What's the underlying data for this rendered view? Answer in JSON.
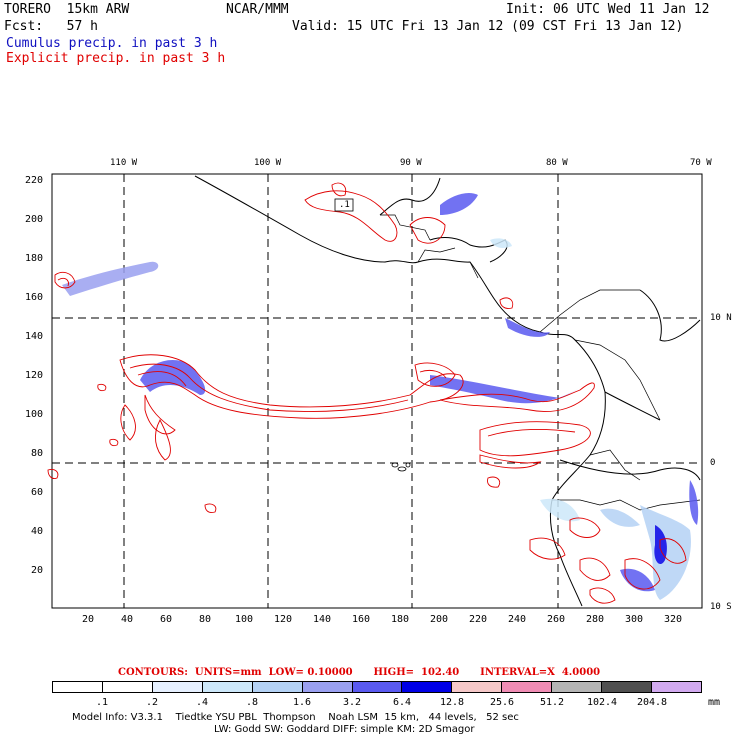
{
  "header": {
    "model": "TORERO  15km ARW",
    "org": "NCAR/MMM",
    "init": "Init: 06 UTC Wed 11 Jan 12",
    "fcst": "Fcst:   57 h",
    "valid": "Valid: 15 UTC Fri 13 Jan 12 (09 CST Fri 13 Jan 12)",
    "cumulus": "Cumulus precip. in past 3 h",
    "explicit": "Explicit precip. in past 3 h"
  },
  "axes": {
    "top_labels": [
      "110 W",
      "100 W",
      "90 W",
      "80 W",
      "70 W"
    ],
    "right_labels": [
      "10 N",
      "0",
      "10 S"
    ],
    "left_ticks": [
      "220",
      "200",
      "180",
      "160",
      "140",
      "120",
      "100",
      "80",
      "60",
      "40",
      "20"
    ],
    "bottom_ticks": [
      "20",
      "40",
      "60",
      "80",
      "100",
      "120",
      "140",
      "160",
      "180",
      "200",
      "220",
      "240",
      "260",
      "280",
      "300",
      "320"
    ]
  },
  "map_marks": {
    "box_label": ".1"
  },
  "footer": {
    "contours": "CONTOURS:  UNITS=mm  LOW= 0.10000      HIGH=  102.40      INTERVAL=X  4.0000",
    "colorbar_labels": [
      ".1",
      ".2",
      ".4",
      ".8",
      "1.6",
      "3.2",
      "6.4",
      "12.8",
      "25.6",
      "51.2",
      "102.4",
      "204.8"
    ],
    "colorbar_unit": "mm",
    "colorbar_colors": [
      "#ffffff",
      "#ffffff",
      "#e6f0ff",
      "#cde8fa",
      "#b4d2f5",
      "#9aa0f0",
      "#5a5af0",
      "#0000e6",
      "#f5c8c8",
      "#f08cb4",
      "#b4b4b4",
      "#505050",
      "#d2aaf0"
    ],
    "model_info_1": "Model Info: V3.3.1    Tiedtke YSU PBL  Thompson    Noah LSM  15 km,   44 levels,   52 sec",
    "model_info_2": "LW: Godd SW: Goddard DIFF: simple KM: 2D Smagor"
  }
}
